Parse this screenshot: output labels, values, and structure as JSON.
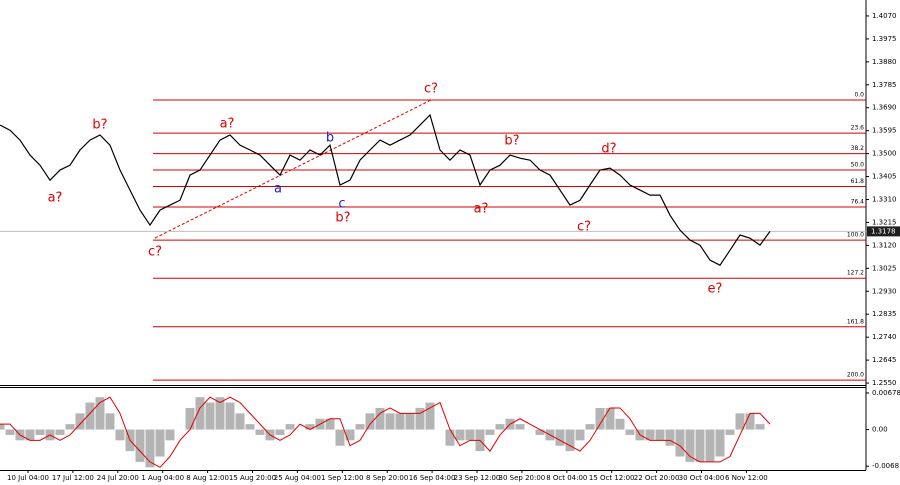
{
  "chart_data": [
    {
      "type": "line",
      "series": [
        {
          "color": "#000000",
          "values": [
            1.3618,
            1.3597,
            1.3556,
            1.3494,
            1.3452,
            1.339,
            1.3432,
            1.3452,
            1.3515,
            1.3556,
            1.3577,
            1.3535,
            1.3432,
            1.3349,
            1.3266,
            1.3204,
            1.3266,
            1.3287,
            1.3307,
            1.3411,
            1.3432,
            1.3494,
            1.3556,
            1.3577,
            1.3535,
            1.3515,
            1.3494,
            1.3452,
            1.3411,
            1.3494,
            1.3473,
            1.3515,
            1.3494,
            1.3535,
            1.337,
            1.339,
            1.3473,
            1.3515,
            1.3556,
            1.3535,
            1.3556,
            1.3577,
            1.3618,
            1.366,
            1.3515,
            1.3473,
            1.3515,
            1.3494,
            1.337,
            1.3432,
            1.3452,
            1.3494,
            1.3481,
            1.3473,
            1.3432,
            1.3411,
            1.3349,
            1.3287,
            1.3307,
            1.337,
            1.3432,
            1.344,
            1.3411,
            1.337,
            1.3349,
            1.3328,
            1.3328,
            1.3245,
            1.3183,
            1.3142,
            1.3121,
            1.3059,
            1.3038,
            1.31,
            1.3163,
            1.315,
            1.3121,
            1.3178
          ]
        }
      ],
      "ylim": [
        1.2542,
        1.4136
      ],
      "yticks": [
        {
          "value": 1.407,
          "label": "1.4070"
        },
        1.3975,
        {
          "value": 1.388,
          "label": "1.3880"
        },
        1.3785,
        {
          "value": 1.369,
          "label": "1.3690"
        },
        1.3595,
        {
          "value": 1.35,
          "label": "1.3500"
        },
        1.3405,
        {
          "value": 1.331,
          "label": "1.3310"
        },
        1.3215,
        {
          "value": 1.312,
          "label": "1.3120"
        },
        1.3025,
        {
          "value": 1.293,
          "label": "1.2930"
        },
        1.2835,
        {
          "value": 1.274,
          "label": "1.2740"
        },
        1.2645,
        {
          "value": 1.255,
          "label": "1.2550"
        }
      ],
      "xticks": [
        "10 Jul 04:00",
        "17 Jul 12:00",
        "24 Jul 20:00",
        "1 Aug 04:00",
        "8 Aug 12:00",
        "15 Aug 20:00",
        "25 Aug 04:00",
        "1 Sep 12:00",
        "8 Sep 20:00",
        "16 Sep 04:00",
        "23 Sep 12:00",
        "30 Sep 20:00",
        "8 Oct 04:00",
        "15 Oct 12:00",
        "22 Oct 20:00",
        "30 Oct 04:00",
        "6 Nov 12:00"
      ],
      "last_price": 1.3178,
      "fib_color": "#d40000",
      "fib_levels": [
        {
          "label": "0.0",
          "value": 1.3722
        },
        {
          "label": "23.6",
          "value": 1.3585
        },
        {
          "label": "38.2",
          "value": 1.35
        },
        {
          "label": "50.0",
          "value": 1.3432
        },
        {
          "label": "61.8",
          "value": 1.3364
        },
        {
          "label": "76.4",
          "value": 1.3279
        },
        {
          "label": "100.0",
          "value": 1.3142
        },
        {
          "label": "127.2",
          "value": 1.2984
        },
        {
          "label": "161.8",
          "value": 1.2783
        },
        {
          "label": "200.0",
          "value": 1.2562
        }
      ],
      "annotations": [
        {
          "text": "b?",
          "color": "#e00000"
        },
        {
          "text": "a?",
          "color": "#e00000"
        },
        {
          "text": "c?",
          "color": "#e00000"
        },
        {
          "text": "a?",
          "color": "#e00000"
        },
        {
          "text": "a",
          "color": "#2020d0"
        },
        {
          "text": "b",
          "color": "#2020d0"
        },
        {
          "text": "c",
          "color": "#2020d0"
        },
        {
          "text": "b?",
          "color": "#e00000"
        },
        {
          "text": "c?",
          "color": "#e00000"
        },
        {
          "text": "b?",
          "color": "#e00000"
        },
        {
          "text": "a?",
          "color": "#e00000"
        },
        {
          "text": "c?",
          "color": "#e00000"
        },
        {
          "text": "d?",
          "color": "#e00000"
        },
        {
          "text": "e?",
          "color": "#e00000"
        }
      ]
    },
    {
      "type": "bar",
      "color": "#b4b4b4",
      "values": [
        0.001,
        -0.001,
        -0.002,
        -0.002,
        -0.001,
        -0.002,
        -0.001,
        0.001,
        0.003,
        0.005,
        0.006,
        0.003,
        -0.002,
        -0.004,
        -0.006,
        -0.007,
        -0.005,
        -0.002,
        0,
        0.004,
        0.006,
        0.005,
        0.006,
        0.005,
        0.003,
        0.001,
        -0.001,
        -0.002,
        -0.001,
        0.001,
        0,
        0.001,
        0.002,
        0.002,
        -0.003,
        -0.002,
        0.001,
        0.003,
        0.004,
        0.003,
        0.003,
        0.003,
        0.004,
        0.005,
        0,
        -0.003,
        -0.002,
        -0.002,
        -0.004,
        -0.001,
        0.001,
        0.002,
        0.001,
        0,
        -0.001,
        -0.002,
        -0.003,
        -0.004,
        -0.002,
        0.001,
        0.004,
        0.004,
        0.002,
        -0.001,
        -0.002,
        -0.002,
        -0.002,
        -0.003,
        -0.005,
        -0.006,
        -0.006,
        -0.006,
        -0.005,
        -0.001,
        0.003,
        0.003,
        0.001,
        0
      ],
      "signal": {
        "color": "#e00000",
        "values": [
          0.001,
          0.001,
          -0.001,
          -0.002,
          -0.002,
          -0.001,
          -0.002,
          -0.001,
          0.001,
          0.003,
          0.005,
          0.006,
          0.003,
          -0.002,
          -0.004,
          -0.006,
          -0.007,
          -0.005,
          -0.002,
          0,
          0.004,
          0.006,
          0.005,
          0.006,
          0.005,
          0.003,
          0.001,
          -0.001,
          -0.002,
          -0.001,
          0.001,
          0,
          0.001,
          0.002,
          0.002,
          -0.003,
          -0.002,
          0.001,
          0.003,
          0.004,
          0.003,
          0.003,
          0.003,
          0.004,
          0.005,
          0,
          -0.003,
          -0.002,
          -0.002,
          -0.004,
          -0.001,
          0.001,
          0.002,
          0.001,
          0,
          -0.001,
          -0.002,
          -0.003,
          -0.004,
          -0.002,
          0.001,
          0.004,
          0.004,
          0.002,
          -0.001,
          -0.002,
          -0.002,
          -0.002,
          -0.003,
          -0.005,
          -0.006,
          -0.006,
          -0.006,
          -0.005,
          -0.001,
          0.003,
          0.003,
          0.001
        ]
      },
      "ylim": [
        -0.0075,
        0.0077
      ],
      "yticks": [
        0.00678,
        {
          "value": 0,
          "label": "0.00"
        },
        -0.0068
      ]
    }
  ]
}
